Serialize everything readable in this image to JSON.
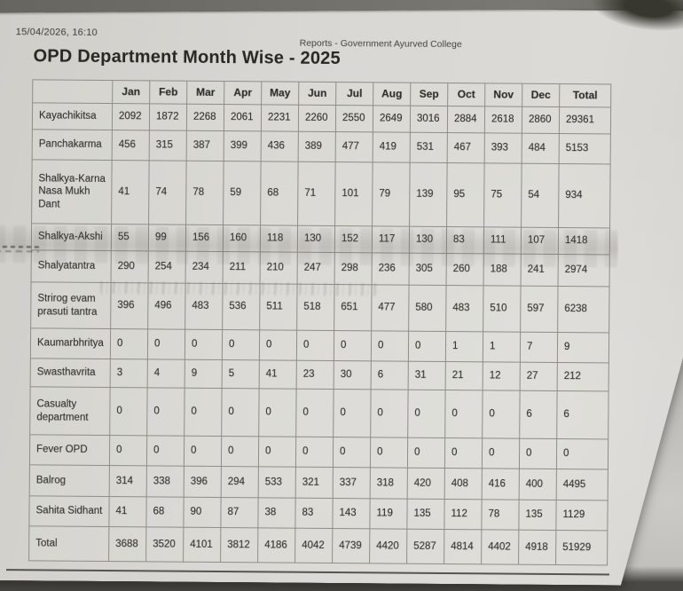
{
  "header": {
    "timestamp": "15/04/2026, 16:10",
    "source": "Reports - Government Ayurved College",
    "title": "OPD Department Month Wise - 2025"
  },
  "table": {
    "corner_label": "",
    "columns": [
      "Jan",
      "Feb",
      "Mar",
      "Apr",
      "May",
      "Jun",
      "Jul",
      "Aug",
      "Sep",
      "Oct",
      "Nov",
      "Dec",
      "Total"
    ],
    "rows": [
      {
        "label": "Kayachikitsa",
        "values": [
          2092,
          1872,
          2268,
          2061,
          2231,
          2260,
          2550,
          2649,
          3016,
          2884,
          2618,
          2860,
          29361
        ]
      },
      {
        "label": "Panchakarma",
        "values": [
          456,
          315,
          387,
          399,
          436,
          389,
          477,
          419,
          531,
          467,
          393,
          484,
          5153
        ]
      },
      {
        "label": "Shalkya-Karna Nasa Mukh Dant",
        "values": [
          41,
          74,
          78,
          59,
          68,
          71,
          101,
          79,
          139,
          95,
          75,
          54,
          934
        ]
      },
      {
        "label": "Shalkya-Akshi",
        "values": [
          55,
          99,
          156,
          160,
          118,
          130,
          152,
          117,
          130,
          83,
          111,
          107,
          1418
        ]
      },
      {
        "label": "Shalyatantra",
        "values": [
          290,
          254,
          234,
          211,
          210,
          247,
          298,
          236,
          305,
          260,
          188,
          241,
          2974
        ]
      },
      {
        "label": "Strirog evam prasuti tantra",
        "values": [
          396,
          496,
          483,
          536,
          511,
          518,
          651,
          477,
          580,
          483,
          510,
          597,
          6238
        ]
      },
      {
        "label": "Kaumarbhritya",
        "values": [
          0,
          0,
          0,
          0,
          0,
          0,
          0,
          0,
          0,
          1,
          1,
          7,
          9
        ]
      },
      {
        "label": "Swasthavrita",
        "values": [
          3,
          4,
          9,
          5,
          41,
          23,
          30,
          6,
          31,
          21,
          12,
          27,
          212
        ]
      },
      {
        "label": "Casualty department",
        "values": [
          0,
          0,
          0,
          0,
          0,
          0,
          0,
          0,
          0,
          0,
          0,
          6,
          6
        ]
      },
      {
        "label": "Fever OPD",
        "values": [
          0,
          0,
          0,
          0,
          0,
          0,
          0,
          0,
          0,
          0,
          0,
          0,
          0
        ]
      },
      {
        "label": "Balrog",
        "values": [
          314,
          338,
          396,
          294,
          533,
          321,
          337,
          318,
          420,
          408,
          416,
          400,
          4495
        ]
      },
      {
        "label": "Sahita Sidhant",
        "values": [
          41,
          68,
          90,
          87,
          38,
          83,
          143,
          119,
          135,
          112,
          78,
          135,
          1129
        ]
      },
      {
        "label": "Total",
        "values": [
          3688,
          3520,
          4101,
          3812,
          4186,
          4042,
          4739,
          4420,
          5287,
          4814,
          4402,
          4918,
          51929
        ]
      }
    ]
  },
  "colors": {
    "paper": "#d8d6d2",
    "ink": "#33322e",
    "table_border": "#8f8d86",
    "photo_background": "#aeada9",
    "footer_rule": "#56544f"
  }
}
